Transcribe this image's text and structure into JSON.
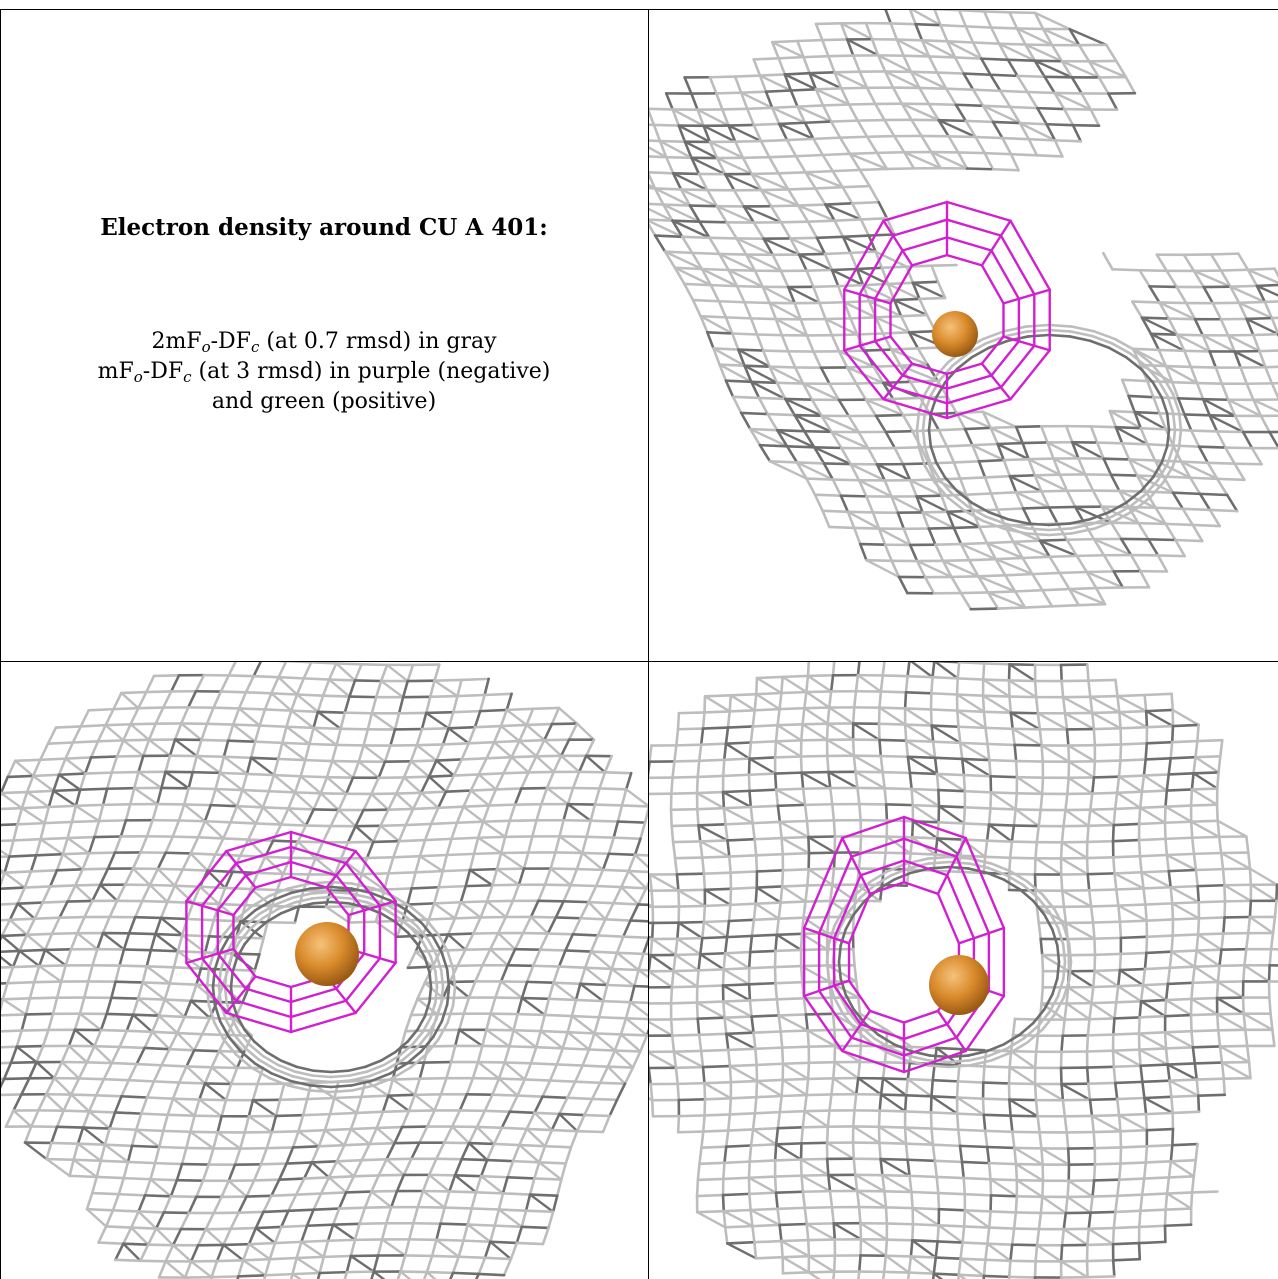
{
  "legend": {
    "title": "Electron density around CU A 401:",
    "line1": {
      "a": "2mF",
      "a_sub": "o",
      "b": "-DF",
      "b_sub": "c",
      "c": " (at 0.7 rmsd) in gray"
    },
    "line2": {
      "a": "mF",
      "a_sub": "o",
      "b": "-DF",
      "b_sub": "c",
      "c": " (at 3 rmsd) in purple (negative)"
    },
    "line3": "and green (positive)"
  },
  "colors": {
    "map_2fofc": "#bdbdbd",
    "map_2fofc_dark": "#6e6e6e",
    "map_fofc_negative": "#d020d0",
    "atom_cu": "#d98a2b",
    "border": "#000000"
  },
  "views": [
    {
      "name": "view-top-right",
      "atom": "CU A 401"
    },
    {
      "name": "view-bottom-left",
      "atom": "CU A 401"
    },
    {
      "name": "view-bottom-right",
      "atom": "CU A 401"
    }
  ]
}
